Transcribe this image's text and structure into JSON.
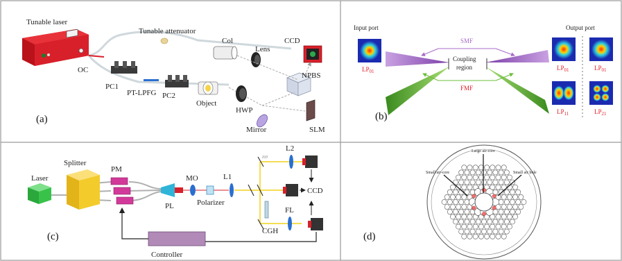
{
  "panel_a": {
    "tag": "(a)",
    "tunable_laser": "Tunable laser",
    "tunable_attenuator": "Tunable attenuator",
    "col": "Col",
    "lens": "Lens",
    "ccd": "CCD",
    "oc": "OC",
    "pc1": "PC1",
    "pc2": "PC2",
    "pt_lpfg": "PT-LPFG",
    "object": "Object",
    "hwp": "HWP",
    "npbs": "NPBS",
    "mirror": "Mirror",
    "slm": "SLM"
  },
  "panel_b": {
    "tag": "(b)",
    "input_port": "Input port",
    "output_port": "Output port",
    "smf": "SMF",
    "fmf": "FMF",
    "coupling_1": "Coupling",
    "coupling_2": "region",
    "lp": "LP",
    "sub_01": "01",
    "sub_11": "11",
    "sub_21": "21"
  },
  "panel_c": {
    "tag": "(c)",
    "laser": "Laser",
    "splitter": "Splitter",
    "pm": "PM",
    "pl": "PL",
    "mo": "MO",
    "polarizer": "Polarizer",
    "l1": "L1",
    "l2": "L2",
    "ccd": "CCD",
    "fl": "FL",
    "cgh": "CGH",
    "controller": "Controller"
  },
  "panel_d": {
    "tag": "(d)",
    "large_air_core": "Large air-core",
    "small_air_core": "Small air-core",
    "small_air_hole": "Small air hole"
  },
  "colors": {
    "border": "#9a9a9a",
    "laser_red": "#d8202a",
    "yellow_beam": "#f2d21a",
    "smf_purple": "#a86cc8",
    "fmf_green": "#6cbf3c",
    "pm_magenta": "#d23a9a",
    "splitter_yellow": "#f3cc2c",
    "laser_green": "#38c24a"
  }
}
